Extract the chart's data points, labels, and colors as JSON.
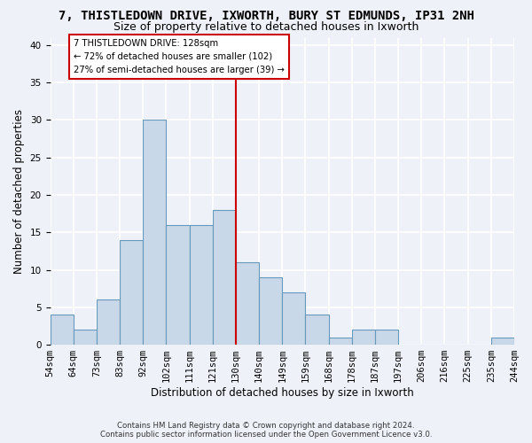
{
  "title_line1": "7, THISTLEDOWN DRIVE, IXWORTH, BURY ST EDMUNDS, IP31 2NH",
  "title_line2": "Size of property relative to detached houses in Ixworth",
  "xlabel": "Distribution of detached houses by size in Ixworth",
  "ylabel": "Number of detached properties",
  "footer": "Contains HM Land Registry data © Crown copyright and database right 2024.\nContains public sector information licensed under the Open Government Licence v3.0.",
  "tick_labels": [
    "54sqm",
    "64sqm",
    "73sqm",
    "83sqm",
    "92sqm",
    "102sqm",
    "111sqm",
    "121sqm",
    "130sqm",
    "140sqm",
    "149sqm",
    "159sqm",
    "168sqm",
    "178sqm",
    "187sqm",
    "197sqm",
    "206sqm",
    "216sqm",
    "225sqm",
    "235sqm",
    "244sqm"
  ],
  "values": [
    4,
    2,
    6,
    14,
    30,
    16,
    16,
    18,
    11,
    9,
    7,
    4,
    1,
    2,
    2,
    0,
    0,
    0,
    0,
    1
  ],
  "bar_color": "#c8d8e8",
  "bar_edge_color": "#6699bb",
  "vline_color": "#cc0000",
  "annotation_text": "7 THISTLEDOWN DRIVE: 128sqm\n← 72% of detached houses are smaller (102)\n27% of semi-detached houses are larger (39) →",
  "annotation_box_edgecolor": "#cc0000",
  "ylim": [
    0,
    41
  ],
  "yticks": [
    0,
    5,
    10,
    15,
    20,
    25,
    30,
    35,
    40
  ],
  "background_color": "#eef2f8",
  "grid_color": "#ffffff",
  "title_fontsize": 10,
  "subtitle_fontsize": 9,
  "axis_label_fontsize": 8.5,
  "tick_fontsize": 7.5
}
